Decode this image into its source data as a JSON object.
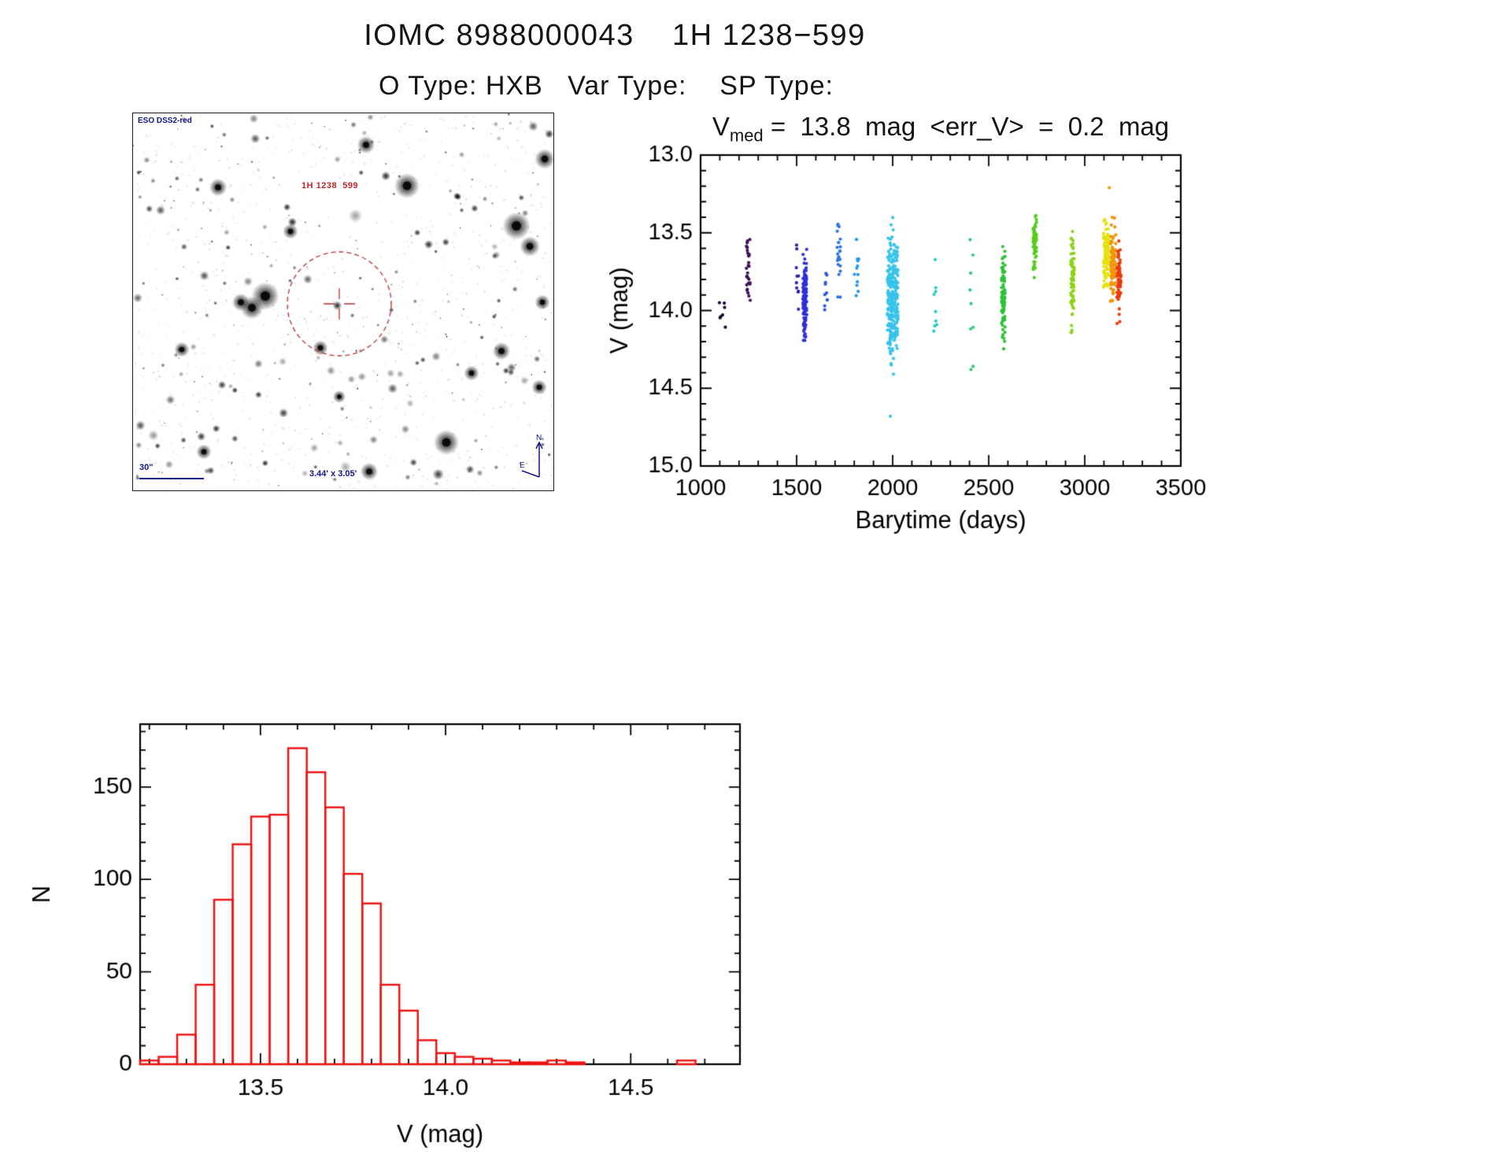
{
  "page": {
    "title": "IOMC 8988000043    1H 1238−599",
    "subtitle": "O Type: HXB   Var Type:    SP Type:"
  },
  "finder": {
    "survey_label": "ESO DSS2-red",
    "source_label": "1H 1238  599",
    "scale_label": "30\"",
    "fov_label": "3.44' x 3.05'",
    "compass_north": "N",
    "compass_east": "E"
  },
  "chart_data": [
    {
      "type": "scatter",
      "title": "V_med = 13.8 mag <err_V> = 0.2 mag",
      "title_parts": {
        "var": "V",
        "sub": "med",
        "rest": " =  13.8  mag  <err_V>  =  0.2  mag"
      },
      "v_med_mag": 13.8,
      "err_v_mag": 0.2,
      "xlabel": "Barytime (days)",
      "ylabel": "V (mag)",
      "xlim": [
        1000,
        3500
      ],
      "ylim": [
        13.0,
        15.0
      ],
      "y_axis_inverted": true,
      "x_ticks": [
        1000,
        1500,
        2000,
        2500,
        3000,
        3500
      ],
      "y_ticks": [
        13.0,
        13.5,
        14.0,
        14.5,
        15.0
      ],
      "grid": false,
      "legend": "none",
      "clusters": [
        {
          "x": 1112,
          "x_spread": 22,
          "v_mean": 14.0,
          "v_sigma": 0.09,
          "v_min": 13.86,
          "v_max": 14.13,
          "n": 7,
          "color": "#16032c"
        },
        {
          "x": 1248,
          "x_spread": 11,
          "v_mean": 13.71,
          "v_sigma": 0.11,
          "v_min": 13.48,
          "v_max": 13.96,
          "n": 28,
          "color": "#3c1157"
        },
        {
          "x": 1505,
          "x_spread": 8,
          "v_mean": 13.75,
          "v_sigma": 0.14,
          "v_min": 13.55,
          "v_max": 14.02,
          "n": 10,
          "color": "#3520a8"
        },
        {
          "x": 1543,
          "x_spread": 10,
          "v_mean": 13.96,
          "v_sigma": 0.14,
          "v_min": 13.58,
          "v_max": 14.26,
          "n": 115,
          "color": "#2f2fd8"
        },
        {
          "x": 1655,
          "x_spread": 9,
          "v_mean": 13.85,
          "v_sigma": 0.12,
          "v_min": 13.64,
          "v_max": 14.06,
          "n": 10,
          "color": "#2c55de"
        },
        {
          "x": 1719,
          "x_spread": 9,
          "v_mean": 13.66,
          "v_sigma": 0.13,
          "v_min": 13.44,
          "v_max": 13.96,
          "n": 22,
          "color": "#2e74e2"
        },
        {
          "x": 1812,
          "x_spread": 13,
          "v_mean": 13.8,
          "v_sigma": 0.15,
          "v_min": 13.5,
          "v_max": 14.06,
          "n": 12,
          "color": "#2797e8"
        },
        {
          "x": 2000,
          "x_spread": 28,
          "v_mean": 13.92,
          "v_sigma": 0.19,
          "v_min": 13.36,
          "v_max": 14.5,
          "n": 260,
          "color": "#38c3ea"
        },
        {
          "x": 2222,
          "x_spread": 9,
          "v_mean": 13.86,
          "v_sigma": 0.2,
          "v_min": 13.6,
          "v_max": 14.16,
          "n": 9,
          "color": "#27ccc3"
        },
        {
          "x": 2410,
          "x_spread": 9,
          "v_mean": 13.92,
          "v_sigma": 0.38,
          "v_min": 13.38,
          "v_max": 14.52,
          "n": 9,
          "color": "#2fc87d"
        },
        {
          "x": 2576,
          "x_spread": 9,
          "v_mean": 13.9,
          "v_sigma": 0.15,
          "v_min": 13.55,
          "v_max": 14.26,
          "n": 90,
          "color": "#2ec23a"
        },
        {
          "x": 2740,
          "x_spread": 9,
          "v_mean": 13.56,
          "v_sigma": 0.1,
          "v_min": 13.38,
          "v_max": 13.86,
          "n": 55,
          "color": "#55cb1d"
        },
        {
          "x": 2936,
          "x_spread": 9,
          "v_mean": 13.82,
          "v_sigma": 0.16,
          "v_min": 13.48,
          "v_max": 14.37,
          "n": 72,
          "color": "#8ad414"
        },
        {
          "x": 3112,
          "x_spread": 14,
          "v_mean": 13.66,
          "v_sigma": 0.11,
          "v_min": 13.34,
          "v_max": 13.96,
          "n": 115,
          "color": "#e6e212"
        },
        {
          "x": 3148,
          "x_spread": 14,
          "v_mean": 13.72,
          "v_sigma": 0.13,
          "v_min": 13.28,
          "v_max": 14.02,
          "n": 90,
          "color": "#f0960a"
        },
        {
          "x": 3178,
          "x_spread": 11,
          "v_mean": 13.82,
          "v_sigma": 0.13,
          "v_min": 13.36,
          "v_max": 14.1,
          "n": 58,
          "color": "#e93c0c"
        }
      ],
      "outliers": [
        {
          "x": 1988,
          "v": 14.68,
          "color": "#38c3ea"
        },
        {
          "x": 3128,
          "v": 13.21,
          "color": "#f0960a"
        }
      ]
    },
    {
      "type": "histogram",
      "xlabel": "V (mag)",
      "ylabel": "N",
      "bin_start": 13.175,
      "bin_width": 0.05,
      "counts": [
        2,
        4,
        16,
        43,
        89,
        119,
        134,
        135,
        171,
        158,
        139,
        103,
        87,
        43,
        29,
        13,
        6,
        4,
        3,
        2,
        1,
        1,
        2,
        1,
        0,
        0,
        0,
        0,
        0,
        2,
        0
      ],
      "xlim": [
        13.175,
        14.795
      ],
      "ylim": [
        0,
        184
      ],
      "x_ticks": [
        13.5,
        14.0,
        14.5
      ],
      "y_ticks": [
        0,
        50,
        100,
        150
      ],
      "grid": false,
      "bar_color": "#ee1111"
    }
  ]
}
